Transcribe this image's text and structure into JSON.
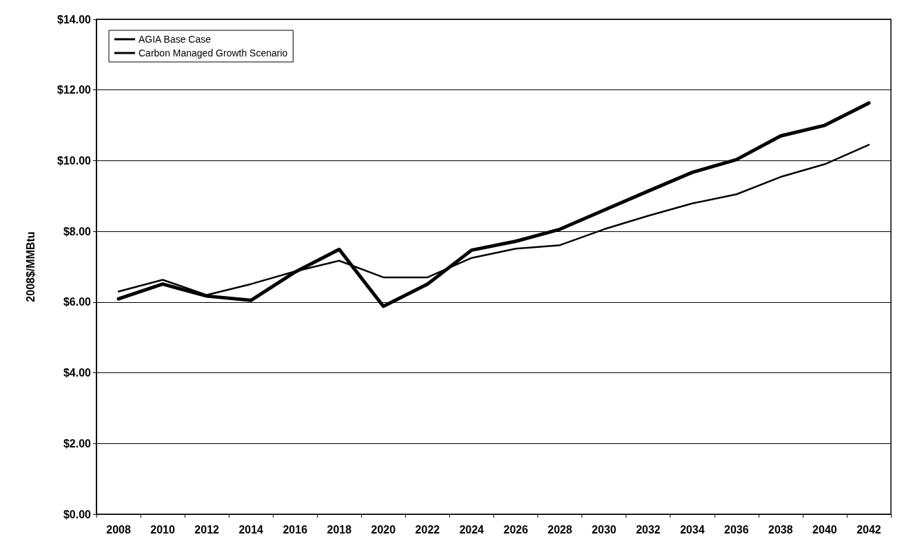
{
  "chart_data": {
    "type": "line",
    "ylabel": "2008$/MMBtu",
    "categories": [
      "2008",
      "2010",
      "2012",
      "2014",
      "2016",
      "2018",
      "2020",
      "2022",
      "2024",
      "2026",
      "2028",
      "2030",
      "2032",
      "2034",
      "2036",
      "2038",
      "2040",
      "2042"
    ],
    "series": [
      {
        "name": "AGIA Base Case",
        "color": "#000000",
        "values": [
          6.3,
          6.63,
          6.2,
          6.51,
          6.87,
          7.17,
          6.7,
          6.7,
          7.25,
          7.51,
          7.61,
          8.06,
          8.44,
          8.79,
          9.05,
          9.54,
          9.9,
          10.45
        ]
      },
      {
        "name": "Carbon Managed Growth Scenario",
        "color": "#000000",
        "values": [
          6.09,
          6.51,
          6.17,
          6.05,
          6.85,
          7.49,
          5.88,
          6.51,
          7.47,
          7.72,
          8.06,
          8.6,
          9.14,
          9.67,
          10.03,
          10.7,
          11.0,
          11.63
        ]
      }
    ],
    "ylim": [
      0,
      14
    ],
    "yticks": [
      {
        "value": 0,
        "label": "$0.00"
      },
      {
        "value": 2,
        "label": "$2.00"
      },
      {
        "value": 4,
        "label": "$4.00"
      },
      {
        "value": 6,
        "label": "$6.00"
      },
      {
        "value": 8,
        "label": "$8.00"
      },
      {
        "value": 10,
        "label": "$10.00"
      },
      {
        "value": 12,
        "label": "$12.00"
      },
      {
        "value": 14,
        "label": "$14.00"
      }
    ],
    "grid": "y",
    "legend": "top left",
    "marker": "none",
    "line_style": "solid"
  }
}
